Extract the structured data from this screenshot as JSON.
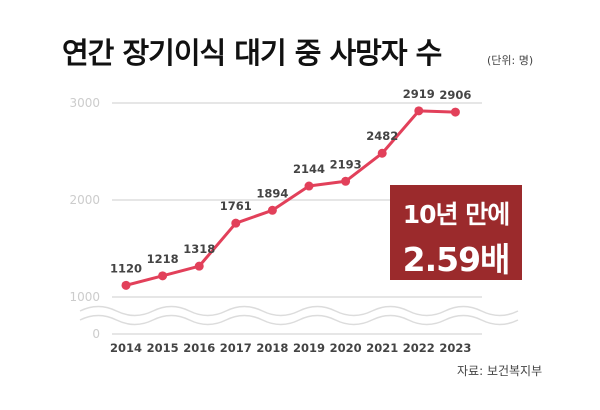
{
  "title": "연간 장기이식 대기 중 사망자 수",
  "unit": "(단위: 명)",
  "callout": {
    "line1": "10년 만에",
    "line2": "2.59배"
  },
  "source": "자료: 보건복지부",
  "colors": {
    "line": "#e2405a",
    "callout": "#9b2a2c",
    "grid": "#dddddd",
    "tick": "#cccccc",
    "year": "#444444"
  },
  "chart_data": {
    "type": "line",
    "title": "연간 장기이식 대기 중 사망자 수",
    "x": [
      "2014",
      "2015",
      "2016",
      "2017",
      "2018",
      "2019",
      "2020",
      "2021",
      "2022",
      "2023"
    ],
    "series": [
      {
        "name": "사망자 수",
        "values": [
          1120,
          1218,
          1318,
          1761,
          1894,
          2144,
          2193,
          2482,
          2919,
          2906
        ]
      }
    ],
    "yticks": [
      "0",
      "1000",
      "2000",
      "3000"
    ],
    "ylim": [
      0,
      3000
    ],
    "axis_break": "between 0 and 1000",
    "grid": true,
    "legend": "none"
  }
}
